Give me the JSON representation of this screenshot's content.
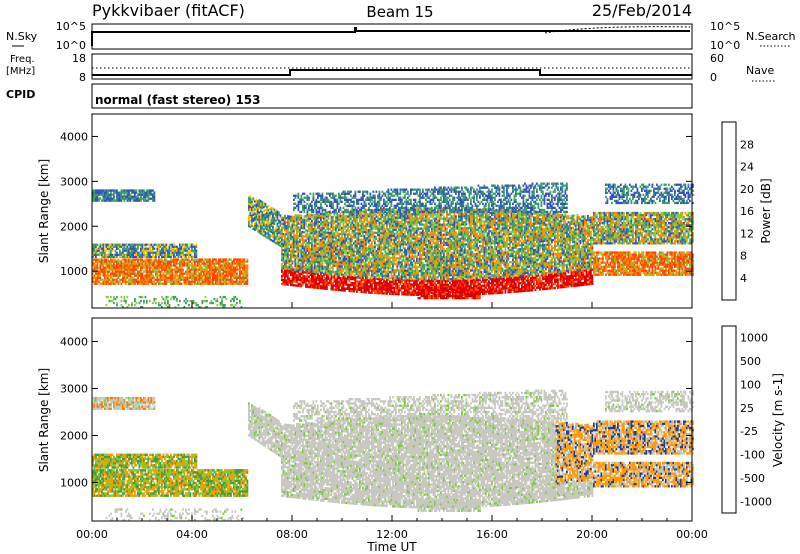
{
  "header": {
    "station": "Pykkvibaer (fitACF)",
    "beam": "Beam 15",
    "date": "25/Feb/2014"
  },
  "noise_panel": {
    "left_label": "N.Sky",
    "left_ticks": [
      "10^5",
      "10^0"
    ],
    "right_ticks": [
      "10^5",
      "10^0"
    ],
    "right_label": "N.Search"
  },
  "freq_panel": {
    "left_label_1": "Freq.",
    "left_label_2": "[MHz]",
    "left_ticks": [
      "18",
      "8"
    ],
    "right_ticks": [
      "60",
      "0"
    ],
    "right_label": "Nave"
  },
  "cpid": {
    "label": "CPID",
    "text": "normal (fast stereo) 153"
  },
  "chart_data": [
    {
      "type": "heatmap",
      "quantity": "Power",
      "ylabel": "Slant Range [km]",
      "ylim": [
        180,
        4500
      ],
      "yticks": [
        1000,
        2000,
        3000,
        4000
      ],
      "xlim_hours": [
        0,
        24
      ],
      "colorbar": {
        "label": "Power [dB]",
        "tick_labels": [
          "4",
          "8",
          "12",
          "16",
          "20",
          "24",
          "28"
        ],
        "range": [
          0,
          32
        ],
        "colors": [
          "#1a1aff",
          "#3355bb",
          "#3d9e6a",
          "#88cc44",
          "#f2c000",
          "#ff8a00",
          "#ff4a00",
          "#e00000"
        ]
      }
    },
    {
      "type": "heatmap",
      "quantity": "Velocity",
      "ylabel": "Slant Range [km]",
      "ylim": [
        180,
        4500
      ],
      "yticks": [
        1000,
        2000,
        3000,
        4000
      ],
      "xlim_hours": [
        0,
        24
      ],
      "xlabel": "Time UT",
      "xtick_labels": [
        "00:00",
        "04:00",
        "08:00",
        "12:00",
        "16:00",
        "20:00",
        "00:00"
      ],
      "colorbar": {
        "label": "Velocity [m s-1]",
        "tick_labels": [
          "1000",
          "500",
          "100",
          "25",
          "-25",
          "-100",
          "-500",
          "-1000"
        ],
        "colors": [
          "#1e3c9e",
          "#2a7a4a",
          "#3fa040",
          "#7ccc3a",
          "#c8c8c0",
          "#ff9a00",
          "#ff7a00",
          "#ff3000"
        ]
      }
    }
  ]
}
